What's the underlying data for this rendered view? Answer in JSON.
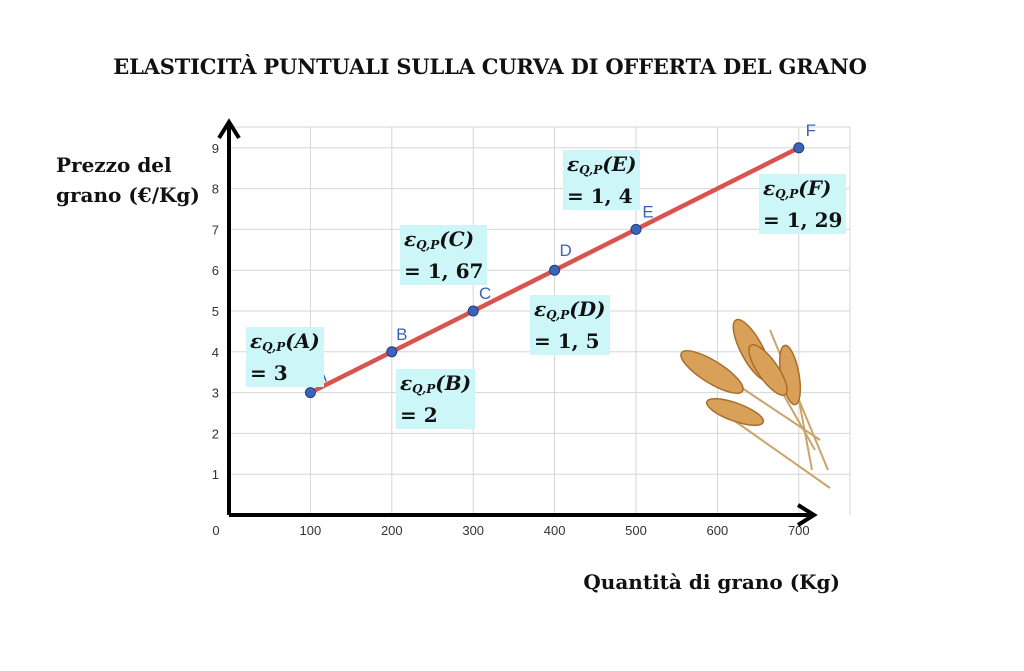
{
  "chart_data": {
    "type": "line",
    "title": "ELASTICITÀ PUNTUALI SULLA CURVA DI OFFERTA DEL GRANO",
    "ylabel": "Prezzo del grano (€/Kg)",
    "ylabel_lines": [
      "Prezzo del",
      "grano (€/Kg)"
    ],
    "xlabel": "Quantità di grano (Kg)",
    "xlim": [
      0,
      700
    ],
    "ylim": [
      0,
      9
    ],
    "x_ticks": [
      "100",
      "200",
      "300",
      "400",
      "500",
      "600",
      "700"
    ],
    "y_ticks": [
      "1",
      "2",
      "3",
      "4",
      "5",
      "6",
      "7",
      "8",
      "9"
    ],
    "origin_label": "0",
    "grid": true,
    "line_color": "#d9534f",
    "point_color": "#3b64b8",
    "label_bg": "#ccf6f8",
    "points": [
      {
        "name": "A",
        "x": 100,
        "y": 3,
        "elasticity_label": "ε",
        "subscript": "Q,P",
        "arg": "(A)",
        "value": "= 3"
      },
      {
        "name": "B",
        "x": 200,
        "y": 4,
        "elasticity_label": "ε",
        "subscript": "Q,P",
        "arg": "(B)",
        "value": "= 2"
      },
      {
        "name": "C",
        "x": 300,
        "y": 5,
        "elasticity_label": "ε",
        "subscript": "Q,P",
        "arg": "(C)",
        "value": "= 1, 67"
      },
      {
        "name": "D",
        "x": 400,
        "y": 6,
        "elasticity_label": "ε",
        "subscript": "Q,P",
        "arg": "(D)",
        "value": "= 1, 5"
      },
      {
        "name": "E",
        "x": 500,
        "y": 7,
        "elasticity_label": "ε",
        "subscript": "Q,P",
        "arg": "(E)",
        "value": "= 1, 4"
      },
      {
        "name": "F",
        "x": 700,
        "y": 9,
        "elasticity_label": "ε",
        "subscript": "Q,P",
        "arg": "(F)",
        "value": "= 1, 29"
      }
    ]
  },
  "decoration": {
    "icon": "wheat-icon"
  }
}
